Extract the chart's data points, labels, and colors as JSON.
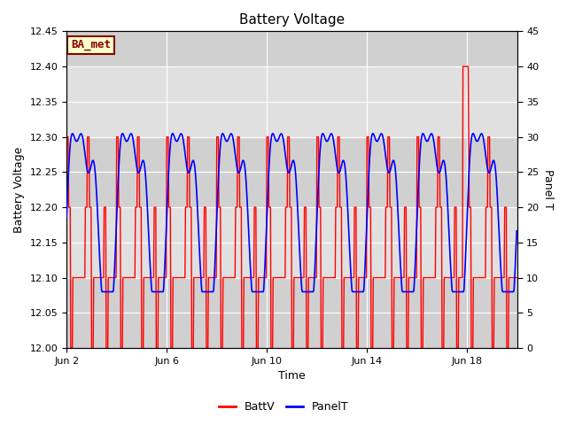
{
  "title": "Battery Voltage",
  "xlabel": "Time",
  "ylabel_left": "Battery Voltage",
  "ylabel_right": "Panel T",
  "ylim_left": [
    12.0,
    12.45
  ],
  "ylim_right": [
    0,
    45
  ],
  "yticks_left": [
    12.0,
    12.05,
    12.1,
    12.15,
    12.2,
    12.25,
    12.3,
    12.35,
    12.4,
    12.45
  ],
  "yticks_right": [
    0,
    5,
    10,
    15,
    20,
    25,
    30,
    35,
    40,
    45
  ],
  "xtick_days": [
    2,
    6,
    10,
    14,
    18
  ],
  "legend_labels": [
    "BattV",
    "PanelT"
  ],
  "legend_colors": [
    "red",
    "blue"
  ],
  "batt_color": "red",
  "panel_color": "blue",
  "annotation_text": "BA_met",
  "annotation_bg": "#ffffcc",
  "annotation_border": "#8b0000",
  "bg_color": "#ffffff",
  "plot_bg_color": "#e8e8e8",
  "grid_color": "#ffffff",
  "band_light": "#e8e8e8",
  "band_dark": "#d0d0d0",
  "band_edges": [
    12.0,
    12.1,
    12.2,
    12.3,
    12.4,
    12.45
  ],
  "band_colors": [
    "#d0d0d0",
    "#e0e0e0",
    "#d0d0d0",
    "#e0e0e0",
    "#d0d0d0"
  ]
}
